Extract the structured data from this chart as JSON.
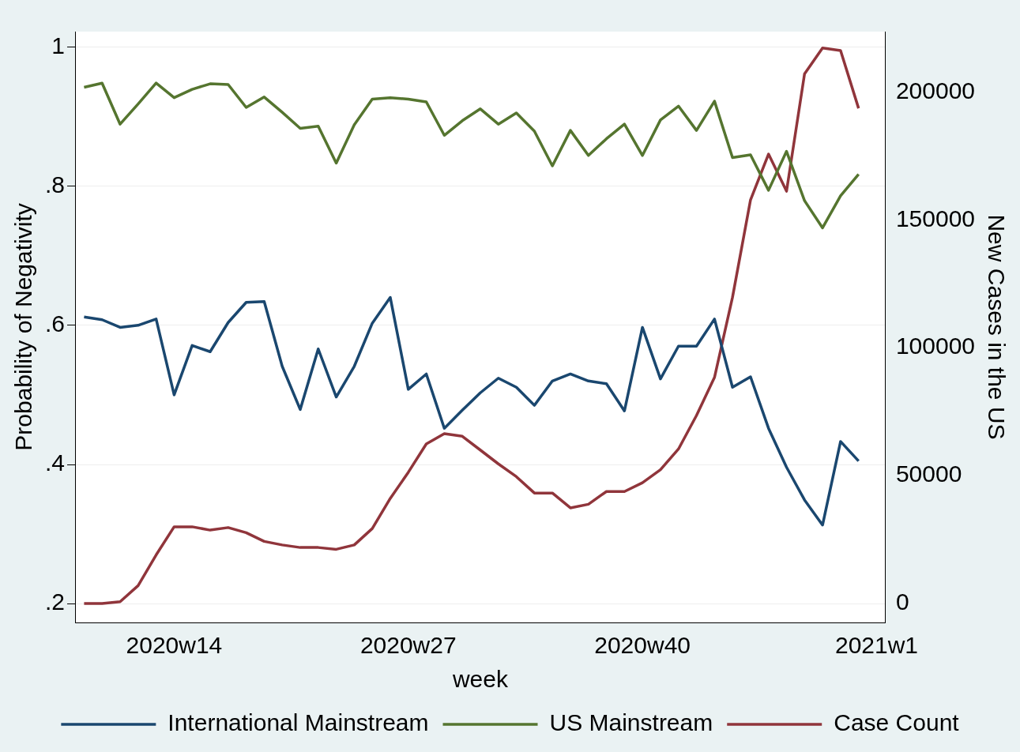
{
  "chart_data": {
    "type": "line",
    "xlabel": "week",
    "ylabel": "Probability of Negativity",
    "y2label": "New Cases in the US",
    "categories": [
      null,
      null,
      null,
      null,
      null,
      "2020w14",
      null,
      null,
      null,
      null,
      null,
      null,
      null,
      null,
      null,
      null,
      null,
      null,
      "2020w27",
      null,
      null,
      null,
      null,
      null,
      null,
      null,
      null,
      null,
      null,
      null,
      null,
      "2020w40",
      null,
      null,
      null,
      null,
      null,
      null,
      null,
      null,
      null,
      null,
      null,
      null,
      "2021w1"
    ],
    "ylim": [
      0.173,
      1.022
    ],
    "yticks": [
      {
        "value": 0.2,
        "label": ".2"
      },
      {
        "value": 0.4,
        "label": ".4"
      },
      {
        "value": 0.6,
        "label": ".6"
      },
      {
        "value": 0.8,
        "label": ".8"
      },
      1
    ],
    "y2lim": [
      -7400,
      223600
    ],
    "y2ticks": [
      0,
      50000,
      100000,
      150000,
      200000
    ],
    "grid": "y",
    "legend": "bottom",
    "series": [
      {
        "name": "International Mainstream",
        "color": "#1a476f",
        "values": [
          0.612,
          0.608,
          0.597,
          0.6,
          0.609,
          0.5,
          0.571,
          0.562,
          0.604,
          0.633,
          0.634,
          0.541,
          0.479,
          0.566,
          0.497,
          0.541,
          0.603,
          0.64,
          0.508,
          0.53,
          0.452,
          0.478,
          0.503,
          0.524,
          0.511,
          0.485,
          0.52,
          0.53,
          0.52,
          0.516,
          0.477,
          0.597,
          0.523,
          0.57,
          0.57,
          0.609,
          0.511,
          0.526,
          0.452,
          0.396,
          0.349,
          0.313,
          0.433,
          0.405,
          null
        ]
      },
      {
        "name": "US Mainstream",
        "color": "#55752f",
        "values": [
          0.942,
          0.948,
          0.889,
          0.918,
          0.948,
          0.927,
          0.939,
          0.947,
          0.946,
          0.913,
          0.928,
          0.906,
          0.883,
          0.886,
          0.833,
          0.888,
          0.925,
          0.927,
          0.925,
          0.921,
          0.873,
          0.894,
          0.911,
          0.889,
          0.905,
          0.879,
          0.829,
          0.88,
          0.844,
          0.868,
          0.889,
          0.844,
          0.895,
          0.915,
          0.88,
          0.922,
          0.841,
          0.845,
          0.794,
          0.85,
          0.779,
          0.74,
          0.786,
          0.817,
          null
        ]
      },
      {
        "name": "Case Count",
        "color": "#90353b",
        "axis": "y2",
        "values": [
          0,
          0,
          700,
          7000,
          19000,
          30000,
          30000,
          28700,
          29700,
          27700,
          24300,
          22900,
          21900,
          21900,
          21200,
          22900,
          29300,
          41100,
          51300,
          62400,
          66400,
          65400,
          60000,
          54600,
          49600,
          43200,
          43200,
          37400,
          38800,
          43800,
          43800,
          47200,
          52300,
          60400,
          73500,
          88400,
          119700,
          157800,
          175700,
          161200,
          207100,
          217200,
          216200,
          193600,
          null
        ]
      }
    ]
  }
}
